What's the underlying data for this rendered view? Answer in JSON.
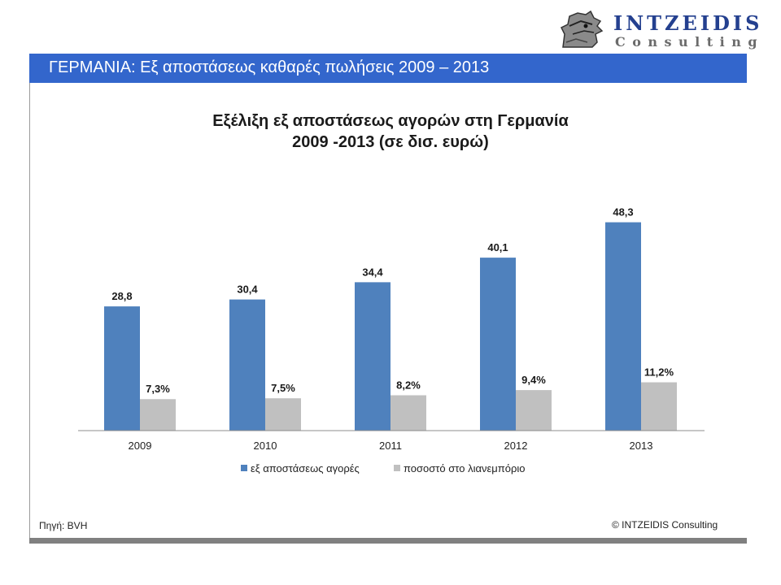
{
  "brand": {
    "name": "INTZEIDIS",
    "subtitle": "Consulting"
  },
  "header": {
    "title": "ΓΕΡΜΑΝΙΑ: Εξ αποστάσεως καθαρές πωλήσεις 2009 – 2013"
  },
  "chart_data": {
    "type": "bar",
    "title_line1": "Εξέλιξη εξ αποστάσεως αγορών στη Γερμανία",
    "title_line2": "2009 -2013 (σε δισ. ευρώ)",
    "categories": [
      "2009",
      "2010",
      "2011",
      "2012",
      "2013"
    ],
    "series": [
      {
        "name": "εξ αποστάσεως αγορές",
        "values": [
          28.8,
          30.4,
          34.4,
          40.1,
          48.3
        ],
        "labels": [
          "28,8",
          "30,4",
          "34,4",
          "40,1",
          "48,3"
        ],
        "color": "#4f81bd"
      },
      {
        "name": "ποσοστό στο λιανεμπόριο",
        "values": [
          7.3,
          7.5,
          8.2,
          9.4,
          11.2
        ],
        "labels": [
          "7,3%",
          "7,5%",
          "8,2%",
          "9,4%",
          "11,2%"
        ],
        "color": "#c0c0c0"
      }
    ],
    "ylim": [
      0,
      55
    ],
    "grid": false,
    "legend_position": "bottom"
  },
  "footer": {
    "source": "Πηγή: BVH",
    "copyright": "© INTZEIDIS Consulting"
  }
}
